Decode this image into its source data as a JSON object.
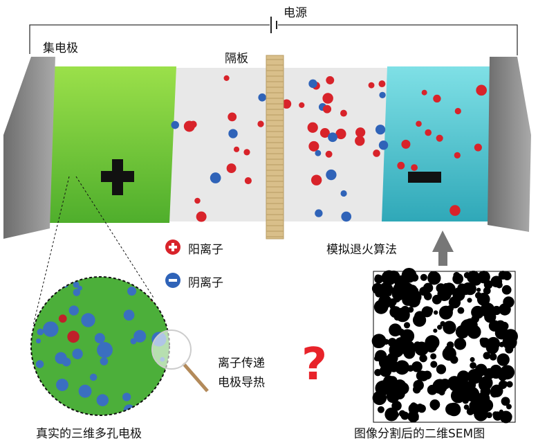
{
  "labels": {
    "power_source": "电源",
    "current_collector": "集电极",
    "separator": "隔板",
    "cation": "阳离子",
    "anion": "阴离子",
    "simulated_annealing": "模拟退火算法",
    "ion_transport": "离子传递",
    "electrode_heat": "电极导热",
    "real_electrode": "真实的三维多孔电极",
    "sem_image": "图像分割后的二维SEM图",
    "positive_sign": "+",
    "negative_sign": "−",
    "question_mark": "?"
  },
  "colors": {
    "positive_electrode": "#6fcf3a",
    "negative_electrode": "#4cc4d0",
    "collector": "#8a8a8a",
    "cation": "#d8232a",
    "anion": "#2f63b8",
    "separator": "#d9bf8a",
    "question": "#e8232a"
  }
}
